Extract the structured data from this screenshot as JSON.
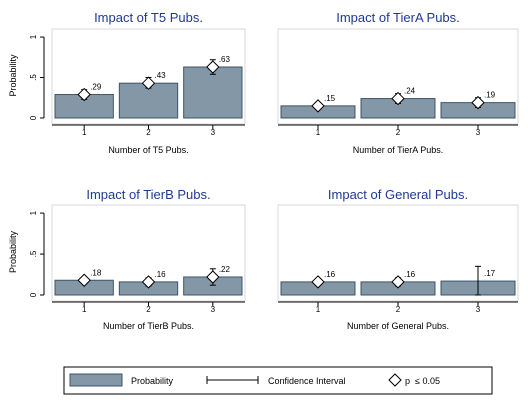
{
  "chart_data": [
    {
      "type": "bar",
      "title": "Impact of T5 Pubs.",
      "xlabel": "Number of T5 Pubs.",
      "ylabel": "Probability",
      "yticks": [
        "0",
        ".5",
        "1"
      ],
      "ylim": [
        0,
        1.05
      ],
      "categories": [
        "1",
        "2",
        "3"
      ],
      "values": [
        0.29,
        0.43,
        0.63
      ],
      "value_labels": [
        ".29",
        ".43",
        ".63"
      ],
      "ci_low": [
        0.23,
        0.37,
        0.54
      ],
      "ci_high": [
        0.35,
        0.5,
        0.72
      ],
      "significant": [
        true,
        true,
        true
      ]
    },
    {
      "type": "bar",
      "title": "Impact of TierA Pubs.",
      "xlabel": "Number of TierA Pubs.",
      "ylabel": "",
      "yticks": [],
      "ylim": [
        0,
        1.05
      ],
      "categories": [
        "1",
        "2",
        "3"
      ],
      "values": [
        0.15,
        0.24,
        0.19
      ],
      "value_labels": [
        ".15",
        ".24",
        ".19"
      ],
      "ci_low": [
        0.11,
        0.18,
        0.13
      ],
      "ci_high": [
        0.19,
        0.3,
        0.25
      ],
      "significant": [
        true,
        true,
        true
      ]
    },
    {
      "type": "bar",
      "title": "Impact of TierB Pubs.",
      "xlabel": "Number of TierB Pubs.",
      "ylabel": "Probability",
      "yticks": [
        "0",
        ".5",
        "1"
      ],
      "ylim": [
        0,
        1.05
      ],
      "categories": [
        "1",
        "2",
        "3"
      ],
      "values": [
        0.18,
        0.16,
        0.22
      ],
      "value_labels": [
        ".18",
        ".16",
        ".22"
      ],
      "ci_low": [
        0.14,
        0.11,
        0.12
      ],
      "ci_high": [
        0.22,
        0.21,
        0.32
      ],
      "significant": [
        true,
        true,
        true
      ]
    },
    {
      "type": "bar",
      "title": "Impact of General Pubs.",
      "xlabel": "Number of General Pubs.",
      "ylabel": "",
      "yticks": [],
      "ylim": [
        0,
        1.05
      ],
      "categories": [
        "1",
        "2",
        "3"
      ],
      "values": [
        0.16,
        0.16,
        0.17
      ],
      "value_labels": [
        ".16",
        ".16",
        ".17"
      ],
      "ci_low": [
        0.12,
        0.11,
        0.0
      ],
      "ci_high": [
        0.2,
        0.21,
        0.35
      ],
      "significant": [
        true,
        true,
        false
      ]
    }
  ],
  "legend": {
    "probability": "Probability",
    "ci": "Confidence Interval",
    "sig": "p  ≤ 0.05"
  },
  "colors": {
    "bar_fill": "#8497a6",
    "bar_stroke": "#3d5566",
    "title": "#1f3a93"
  }
}
